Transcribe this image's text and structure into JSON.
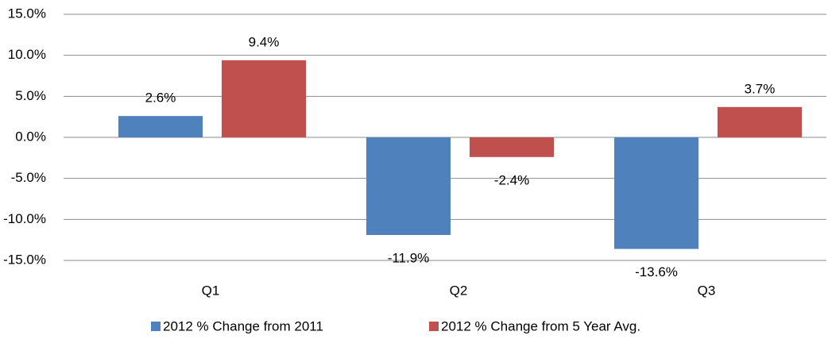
{
  "chart_data": {
    "type": "bar",
    "categories": [
      "Q1",
      "Q2",
      "Q3"
    ],
    "series": [
      {
        "name": "2012 % Change from 2011",
        "color": "#4f81bd",
        "values": [
          2.6,
          -11.9,
          -13.6
        ],
        "value_labels": [
          "2.6%",
          "-11.9%",
          "-13.6%"
        ]
      },
      {
        "name": "2012 % Change from 5 Year Avg.",
        "color": "#c0504d",
        "values": [
          9.4,
          -2.4,
          3.7
        ],
        "value_labels": [
          "9.4%",
          "-2.4%",
          "3.7%"
        ]
      }
    ],
    "ylim": [
      -15,
      15
    ],
    "yticks": [
      {
        "value": -15,
        "label": "-15.0%"
      },
      {
        "value": -10,
        "label": "-10.0%"
      },
      {
        "value": -5,
        "label": "-5.0%"
      },
      {
        "value": 0,
        "label": "0.0%"
      },
      {
        "value": 5,
        "label": "5.0%"
      },
      {
        "value": 10,
        "label": "10.0%"
      },
      {
        "value": 15,
        "label": "15.0%"
      }
    ],
    "grid": true,
    "legend": "bottom"
  }
}
